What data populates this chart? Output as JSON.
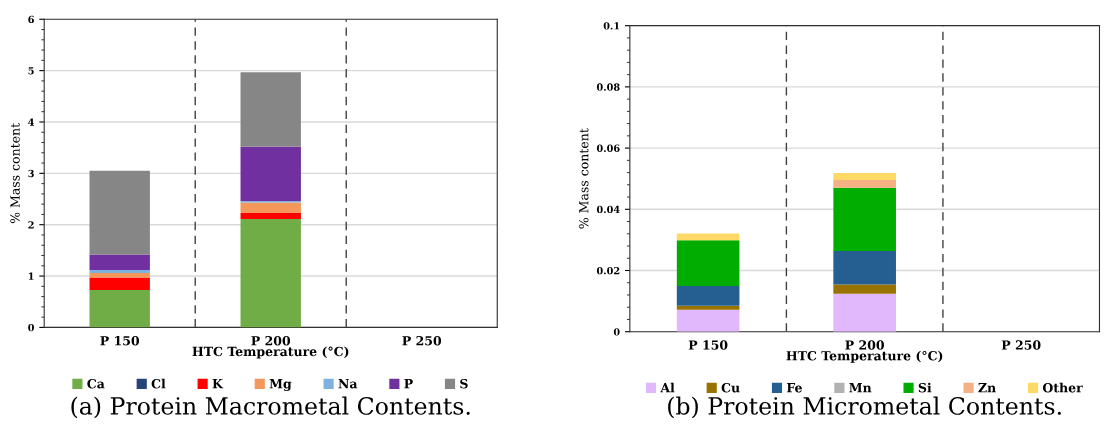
{
  "chart_data": [
    {
      "type": "bar",
      "stacked": true,
      "xlabel": "HTC Temperature (°C)",
      "ylabel": "% Mass content",
      "categories": [
        "P 150",
        "P 200",
        "P 250"
      ],
      "series": [
        {
          "name": "Ca",
          "color": "#70ad47",
          "values": [
            0.73,
            2.11,
            0
          ]
        },
        {
          "name": "Cl",
          "color": "#264478",
          "values": [
            0,
            0,
            0
          ]
        },
        {
          "name": "K",
          "color": "#ff0000",
          "values": [
            0.24,
            0.12,
            0
          ]
        },
        {
          "name": "Mg",
          "color": "#f4975a",
          "values": [
            0.09,
            0.2,
            0
          ]
        },
        {
          "name": "Na",
          "color": "#7eb1e0",
          "values": [
            0.06,
            0.03,
            0
          ]
        },
        {
          "name": "P",
          "color": "#7030a0",
          "values": [
            0.3,
            1.06,
            0
          ]
        },
        {
          "name": "S",
          "color": "#868686",
          "values": [
            1.63,
            1.45,
            0
          ]
        }
      ],
      "ylim": [
        0,
        6
      ],
      "yticks": [
        0,
        {
          "value": 0.2,
          "label": null
        },
        {
          "value": 0.4,
          "label": null
        },
        {
          "value": 0.6,
          "label": null
        },
        {
          "value": 0.8,
          "label": null
        },
        1,
        {
          "value": 1.2,
          "label": null
        },
        {
          "value": 1.4,
          "label": null
        },
        {
          "value": 1.6,
          "label": null
        },
        {
          "value": 1.8,
          "label": null
        },
        2,
        {
          "value": 2.2,
          "label": null
        },
        {
          "value": 2.4,
          "label": null
        },
        {
          "value": 2.6,
          "label": null
        },
        {
          "value": 2.8,
          "label": null
        },
        3,
        {
          "value": 3.2,
          "label": null
        },
        {
          "value": 3.4,
          "label": null
        },
        {
          "value": 3.6,
          "label": null
        },
        {
          "value": 3.8,
          "label": null
        },
        4,
        {
          "value": 4.2,
          "label": null
        },
        {
          "value": 4.4,
          "label": null
        },
        {
          "value": 4.6,
          "label": null
        },
        {
          "value": 4.8,
          "label": null
        },
        5,
        {
          "value": 5.2,
          "label": null
        },
        {
          "value": 5.4,
          "label": null
        },
        {
          "value": 5.6,
          "label": null
        },
        {
          "value": 5.8,
          "label": null
        },
        6
      ],
      "grid": "y",
      "legend": "bottom",
      "annotations": [
        "(a) Protein Macrometal Contents."
      ]
    },
    {
      "type": "bar",
      "stacked": true,
      "xlabel": "HTC Temperature (°C)",
      "ylabel": "% Mass content",
      "categories": [
        "P 150",
        "P 200",
        "P 250"
      ],
      "series": [
        {
          "name": "Al",
          "color": "#e0b8fb",
          "values": [
            0.0072,
            0.0124,
            0
          ]
        },
        {
          "name": "Cu",
          "color": "#997300",
          "values": [
            0.0013,
            0.003,
            0
          ]
        },
        {
          "name": "Fe",
          "color": "#255e91",
          "values": [
            0.0064,
            0.011,
            0
          ]
        },
        {
          "name": "Mn",
          "color": "#b2b2b2",
          "values": [
            0,
            0,
            0
          ]
        },
        {
          "name": "Si",
          "color": "#00ad00",
          "values": [
            0.015,
            0.0206,
            0
          ]
        },
        {
          "name": "Zn",
          "color": "#f4b183",
          "values": [
            0,
            0.0026,
            0
          ]
        },
        {
          "name": "Other",
          "color": "#ffd966",
          "values": [
            0.0022,
            0.0023,
            0
          ]
        }
      ],
      "ylim": [
        0,
        0.1
      ],
      "yticks": [
        0,
        {
          "value": 0.004,
          "label": null
        },
        {
          "value": 0.008,
          "label": null
        },
        {
          "value": 0.012,
          "label": null
        },
        {
          "value": 0.016,
          "label": null
        },
        0.02,
        {
          "value": 0.024,
          "label": null
        },
        {
          "value": 0.028,
          "label": null
        },
        {
          "value": 0.032,
          "label": null
        },
        {
          "value": 0.036,
          "label": null
        },
        0.04,
        {
          "value": 0.044,
          "label": null
        },
        {
          "value": 0.048,
          "label": null
        },
        {
          "value": 0.052,
          "label": null
        },
        {
          "value": 0.056,
          "label": null
        },
        0.06,
        {
          "value": 0.064,
          "label": null
        },
        {
          "value": 0.068,
          "label": null
        },
        {
          "value": 0.072,
          "label": null
        },
        {
          "value": 0.076,
          "label": null
        },
        0.08,
        {
          "value": 0.084,
          "label": null
        },
        {
          "value": 0.088,
          "label": null
        },
        {
          "value": 0.092,
          "label": null
        },
        {
          "value": 0.096,
          "label": null
        },
        0.1
      ],
      "grid": "y",
      "legend": "bottom",
      "annotations": [
        "(b) Protein Micrometal Contents."
      ]
    }
  ]
}
